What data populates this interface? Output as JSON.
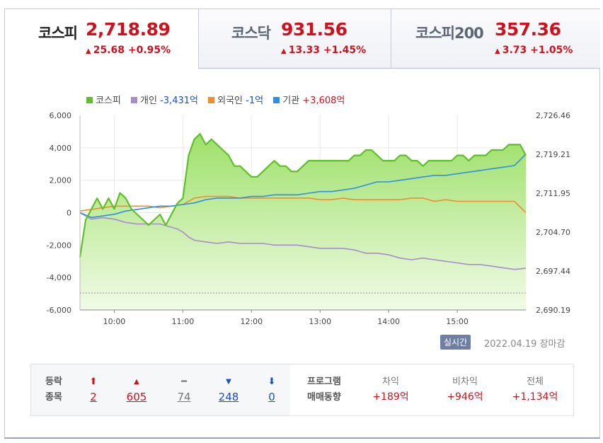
{
  "tabs": [
    {
      "name": "코스피",
      "value": "2,718.89",
      "change": "25.68",
      "pct": "+0.95%",
      "arrow": "▲",
      "active": true
    },
    {
      "name": "코스닥",
      "value": "931.56",
      "change": "13.33",
      "pct": "+1.45%",
      "arrow": "▲",
      "active": false
    },
    {
      "name": "코스피200",
      "value": "357.36",
      "change": "3.73",
      "pct": "+1.05%",
      "arrow": "▲",
      "active": false
    }
  ],
  "legend": [
    {
      "label": "코스피",
      "value": "",
      "color": "#5fbf2a"
    },
    {
      "label": "개인",
      "value": "-3,431억",
      "color": "#a98ad0"
    },
    {
      "label": "외국인",
      "value": "-1억",
      "color": "#ee8f2e"
    },
    {
      "label": "기관",
      "value": "+3,608억",
      "color": "#2f8fe0"
    }
  ],
  "chart_data": {
    "type": "line",
    "x_ticks": [
      "10:00",
      "11:00",
      "12:00",
      "13:00",
      "14:00",
      "15:00"
    ],
    "x_range": [
      "09:00",
      "15:30"
    ],
    "y_left": {
      "ticks": [
        "6,000",
        "4,000",
        "2,000",
        "0",
        "-2,000",
        "-4,000",
        "-6,000"
      ],
      "range": [
        -6000,
        6000
      ]
    },
    "y_right": {
      "ticks": [
        "2,726.46",
        "2,719.21",
        "2,711.95",
        "2,704.70",
        "2,697.44",
        "2,690.19"
      ],
      "range": [
        2690.19,
        2726.46
      ]
    },
    "grid": true,
    "series": [
      {
        "name": "코스피",
        "axis": "right",
        "area": true,
        "color": "#5fbf2a",
        "values": [
          [
            0,
            2700
          ],
          [
            5,
            2707
          ],
          [
            10,
            2709
          ],
          [
            15,
            2711
          ],
          [
            20,
            2709
          ],
          [
            25,
            2711
          ],
          [
            30,
            2709
          ],
          [
            35,
            2712
          ],
          [
            40,
            2711
          ],
          [
            45,
            2709
          ],
          [
            50,
            2708
          ],
          [
            55,
            2707
          ],
          [
            60,
            2706
          ],
          [
            65,
            2707
          ],
          [
            70,
            2708
          ],
          [
            75,
            2706
          ],
          [
            80,
            2708
          ],
          [
            85,
            2710
          ],
          [
            90,
            2711
          ],
          [
            95,
            2719
          ],
          [
            100,
            2722
          ],
          [
            105,
            2723
          ],
          [
            110,
            2721
          ],
          [
            115,
            2722
          ],
          [
            120,
            2721
          ],
          [
            125,
            2720
          ],
          [
            130,
            2719
          ],
          [
            135,
            2717
          ],
          [
            140,
            2717
          ],
          [
            145,
            2716
          ],
          [
            150,
            2715
          ],
          [
            155,
            2715
          ],
          [
            160,
            2716
          ],
          [
            165,
            2717
          ],
          [
            170,
            2718
          ],
          [
            175,
            2717
          ],
          [
            180,
            2717
          ],
          [
            185,
            2716
          ],
          [
            190,
            2716
          ],
          [
            195,
            2717
          ],
          [
            200,
            2718
          ],
          [
            205,
            2718
          ],
          [
            210,
            2718
          ],
          [
            215,
            2718
          ],
          [
            220,
            2718
          ],
          [
            225,
            2718
          ],
          [
            230,
            2718
          ],
          [
            235,
            2718
          ],
          [
            240,
            2719
          ],
          [
            245,
            2719
          ],
          [
            250,
            2720
          ],
          [
            255,
            2720
          ],
          [
            260,
            2719
          ],
          [
            265,
            2718
          ],
          [
            270,
            2718
          ],
          [
            275,
            2718
          ],
          [
            280,
            2719
          ],
          [
            285,
            2719
          ],
          [
            290,
            2718
          ],
          [
            295,
            2718
          ],
          [
            300,
            2717
          ],
          [
            305,
            2718
          ],
          [
            310,
            2718
          ],
          [
            315,
            2718
          ],
          [
            320,
            2718
          ],
          [
            325,
            2718
          ],
          [
            330,
            2719
          ],
          [
            335,
            2719
          ],
          [
            340,
            2718
          ],
          [
            345,
            2719
          ],
          [
            350,
            2719
          ],
          [
            355,
            2719
          ],
          [
            360,
            2720
          ],
          [
            365,
            2720
          ],
          [
            370,
            2720
          ],
          [
            375,
            2721
          ],
          [
            380,
            2721
          ],
          [
            385,
            2721
          ],
          [
            390,
            2719
          ]
        ]
      },
      {
        "name": "개인",
        "axis": "left",
        "color": "#a98ad0",
        "values": [
          [
            0,
            0
          ],
          [
            10,
            -400
          ],
          [
            20,
            -300
          ],
          [
            30,
            -400
          ],
          [
            40,
            -600
          ],
          [
            50,
            -700
          ],
          [
            60,
            -700
          ],
          [
            70,
            -700
          ],
          [
            80,
            -900
          ],
          [
            85,
            -1000
          ],
          [
            90,
            -1200
          ],
          [
            95,
            -1500
          ],
          [
            100,
            -1700
          ],
          [
            110,
            -1800
          ],
          [
            120,
            -1900
          ],
          [
            130,
            -1800
          ],
          [
            140,
            -1900
          ],
          [
            150,
            -1900
          ],
          [
            160,
            -1900
          ],
          [
            170,
            -2000
          ],
          [
            180,
            -2000
          ],
          [
            190,
            -2000
          ],
          [
            200,
            -2100
          ],
          [
            210,
            -2200
          ],
          [
            220,
            -2200
          ],
          [
            230,
            -2200
          ],
          [
            240,
            -2300
          ],
          [
            250,
            -2500
          ],
          [
            260,
            -2500
          ],
          [
            270,
            -2600
          ],
          [
            280,
            -2800
          ],
          [
            290,
            -2900
          ],
          [
            300,
            -2800
          ],
          [
            310,
            -2900
          ],
          [
            320,
            -3000
          ],
          [
            330,
            -3100
          ],
          [
            340,
            -3200
          ],
          [
            350,
            -3200
          ],
          [
            360,
            -3300
          ],
          [
            370,
            -3400
          ],
          [
            380,
            -3500
          ],
          [
            390,
            -3431
          ]
        ]
      },
      {
        "name": "외국인",
        "axis": "left",
        "color": "#ee8f2e",
        "values": [
          [
            0,
            100
          ],
          [
            10,
            200
          ],
          [
            20,
            300
          ],
          [
            30,
            400
          ],
          [
            40,
            400
          ],
          [
            50,
            400
          ],
          [
            60,
            400
          ],
          [
            70,
            300
          ],
          [
            80,
            400
          ],
          [
            90,
            500
          ],
          [
            100,
            900
          ],
          [
            110,
            1000
          ],
          [
            120,
            1000
          ],
          [
            130,
            1000
          ],
          [
            140,
            900
          ],
          [
            150,
            900
          ],
          [
            160,
            900
          ],
          [
            170,
            900
          ],
          [
            180,
            900
          ],
          [
            190,
            900
          ],
          [
            200,
            900
          ],
          [
            210,
            800
          ],
          [
            220,
            800
          ],
          [
            230,
            900
          ],
          [
            240,
            800
          ],
          [
            250,
            800
          ],
          [
            260,
            800
          ],
          [
            270,
            800
          ],
          [
            280,
            800
          ],
          [
            290,
            900
          ],
          [
            300,
            900
          ],
          [
            310,
            700
          ],
          [
            320,
            800
          ],
          [
            330,
            700
          ],
          [
            340,
            700
          ],
          [
            350,
            700
          ],
          [
            360,
            700
          ],
          [
            370,
            700
          ],
          [
            380,
            700
          ],
          [
            390,
            -1
          ]
        ]
      },
      {
        "name": "기관",
        "axis": "left",
        "color": "#2f8fe0",
        "values": [
          [
            0,
            0
          ],
          [
            10,
            -300
          ],
          [
            20,
            -200
          ],
          [
            30,
            -100
          ],
          [
            40,
            100
          ],
          [
            50,
            200
          ],
          [
            60,
            300
          ],
          [
            70,
            400
          ],
          [
            80,
            400
          ],
          [
            90,
            500
          ],
          [
            100,
            600
          ],
          [
            110,
            800
          ],
          [
            120,
            900
          ],
          [
            130,
            900
          ],
          [
            140,
            900
          ],
          [
            150,
            1000
          ],
          [
            160,
            1000
          ],
          [
            170,
            1100
          ],
          [
            180,
            1100
          ],
          [
            190,
            1100
          ],
          [
            200,
            1200
          ],
          [
            210,
            1300
          ],
          [
            220,
            1300
          ],
          [
            230,
            1400
          ],
          [
            240,
            1500
          ],
          [
            250,
            1700
          ],
          [
            260,
            1900
          ],
          [
            270,
            1900
          ],
          [
            280,
            2000
          ],
          [
            290,
            2100
          ],
          [
            300,
            2200
          ],
          [
            310,
            2300
          ],
          [
            320,
            2300
          ],
          [
            330,
            2400
          ],
          [
            340,
            2500
          ],
          [
            350,
            2600
          ],
          [
            360,
            2700
          ],
          [
            370,
            2800
          ],
          [
            380,
            2900
          ],
          [
            390,
            3608
          ]
        ]
      }
    ],
    "reference_line": {
      "axis": "left",
      "value": -4950,
      "style": "dashed"
    }
  },
  "status": {
    "badge": "실시간",
    "date": "2022.04.19 장마감"
  },
  "breadth": {
    "label_line1": "등락",
    "label_line2": "종목",
    "items": [
      {
        "arrow": "⬆",
        "count": "2",
        "tone": "red"
      },
      {
        "arrow": "▲",
        "count": "605",
        "tone": "red"
      },
      {
        "arrow": "━",
        "count": "74",
        "tone": "gray"
      },
      {
        "arrow": "▼",
        "count": "248",
        "tone": "blue"
      },
      {
        "arrow": "⬇",
        "count": "0",
        "tone": "blue"
      }
    ]
  },
  "program": {
    "label_line1": "프로그램",
    "label_line2": "매매동향",
    "items": [
      {
        "label": "차익",
        "value": "+189억"
      },
      {
        "label": "비차익",
        "value": "+946억"
      },
      {
        "label": "전체",
        "value": "+1,134억"
      }
    ]
  }
}
